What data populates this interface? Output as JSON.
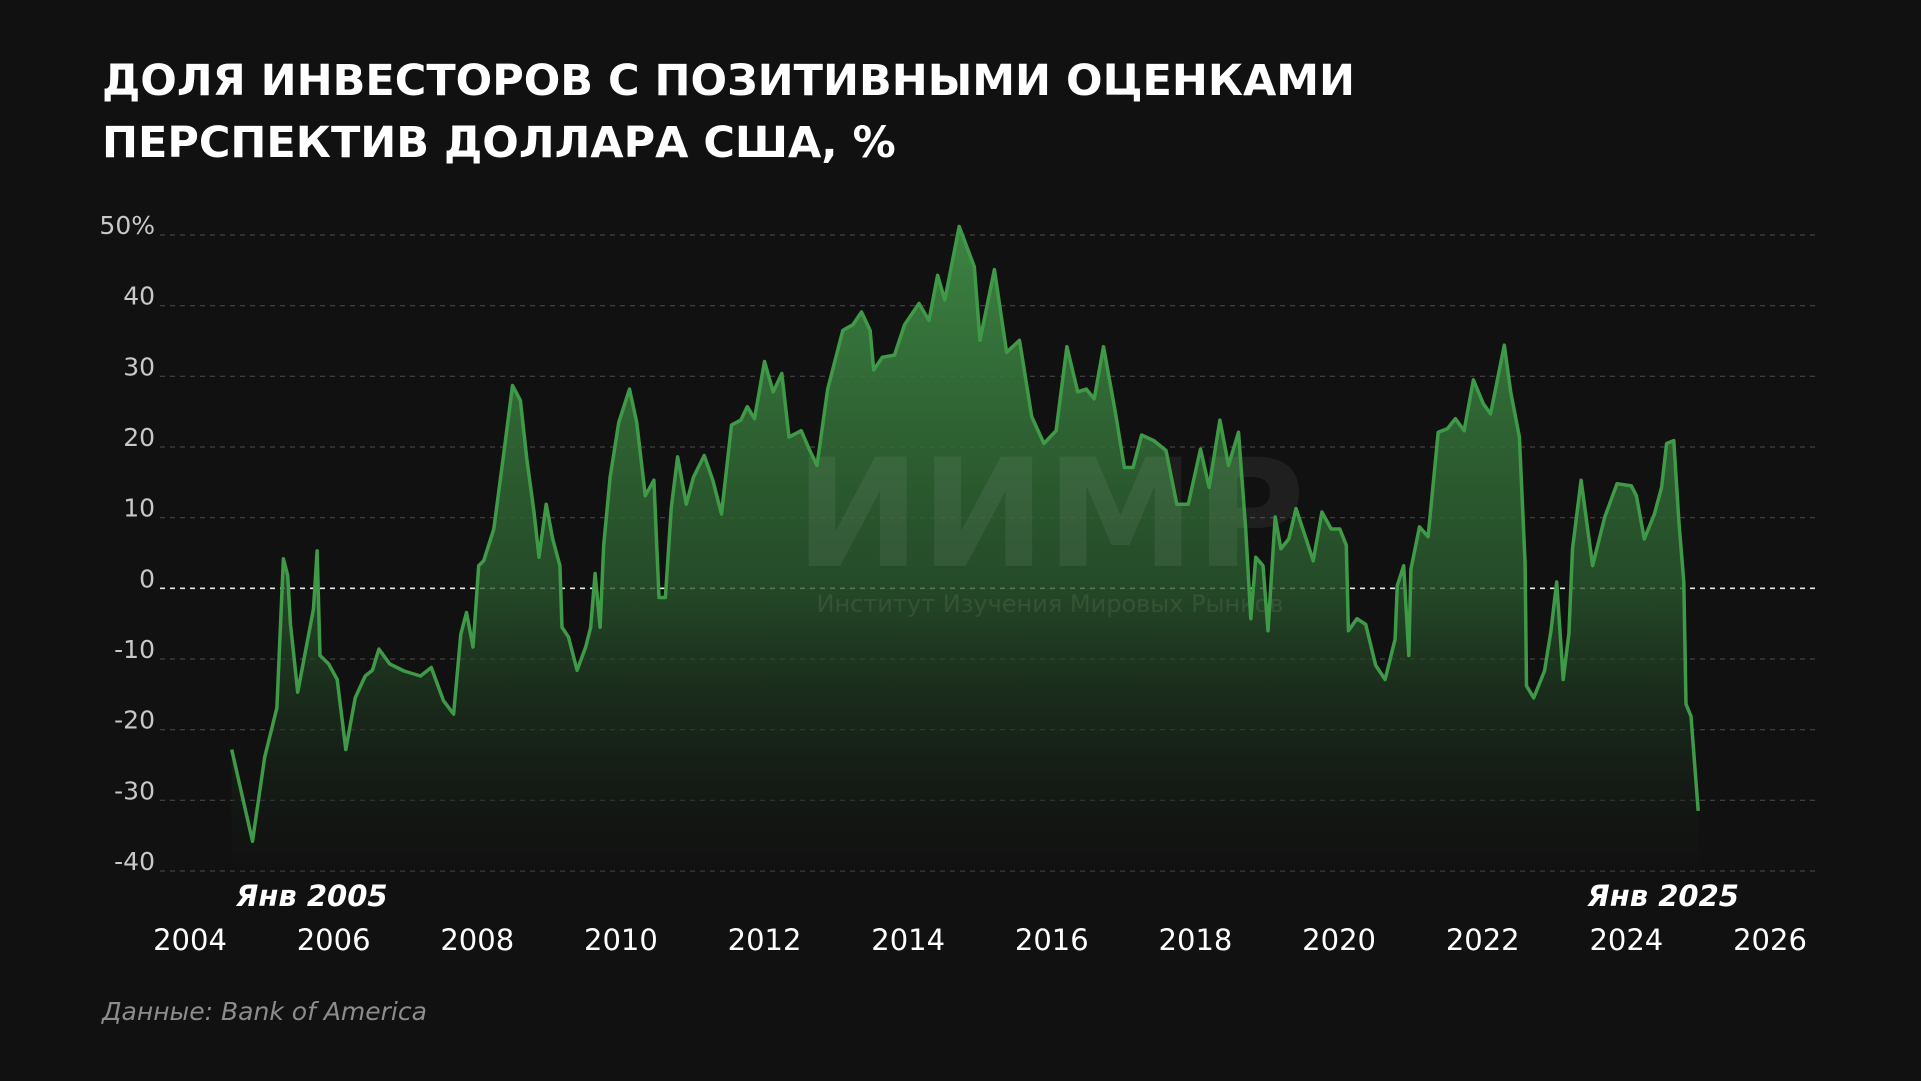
{
  "chart_data": {
    "type": "area",
    "title": [
      "ДОЛЯ ИНВЕСТОРОВ С ПОЗИТИВНЫМИ ОЦЕНКАМИ",
      "ПЕРСПЕКТИВ ДОЛЛАРА США, %"
    ],
    "source": "Данные: Bank of America",
    "annotations": [
      {
        "text": "Янв 2005",
        "x": 2005
      },
      {
        "text": "Янв 2025",
        "x": 2025
      }
    ],
    "watermark": {
      "title": "ИИМР",
      "subtitle": "Институт Изучения Мировых Рынков"
    },
    "xlim": [
      2004,
      2026
    ],
    "xticks": [
      2004,
      2006,
      2008,
      2010,
      2012,
      2014,
      2016,
      2018,
      2020,
      2022,
      2024,
      2026
    ],
    "ylim": [
      -40,
      50
    ],
    "yticks": [
      -40,
      -30,
      -20,
      -10,
      0,
      10,
      20,
      30,
      40,
      {
        "value": 50,
        "label": "50%"
      }
    ],
    "grid": true,
    "series": [
      {
        "color": "#3f9a47",
        "x": [
          2004.58,
          2004.87,
          2005.04,
          2005.21,
          2005.3,
          2005.36,
          2005.4,
          2005.5,
          2005.62,
          2005.72,
          2005.77,
          2005.81,
          2005.93,
          2006.05,
          2006.17,
          2006.3,
          2006.44,
          2006.54,
          2006.63,
          2006.78,
          2006.98,
          2007.21,
          2007.36,
          2007.53,
          2007.67,
          2007.77,
          2007.85,
          2007.94,
          2008.02,
          2008.09,
          2008.23,
          2008.37,
          2008.49,
          2008.6,
          2008.69,
          2008.79,
          2008.86,
          2008.96,
          2009.05,
          2009.15,
          2009.18,
          2009.27,
          2009.39,
          2009.51,
          2009.58,
          2009.64,
          2009.71,
          2009.76,
          2009.85,
          2009.97,
          2010.12,
          2010.22,
          2010.34,
          2010.46,
          2010.53,
          2010.62,
          2010.7,
          2010.79,
          2010.91,
          2011.01,
          2011.16,
          2011.28,
          2011.4,
          2011.54,
          2011.67,
          2011.76,
          2011.86,
          2012.0,
          2012.12,
          2012.24,
          2012.34,
          2012.51,
          2012.63,
          2012.73,
          2012.88,
          2013.09,
          2013.23,
          2013.35,
          2013.47,
          2013.52,
          2013.64,
          2013.81,
          2013.95,
          2014.15,
          2014.29,
          2014.41,
          2014.51,
          2014.71,
          2014.92,
          2015.0,
          2015.2,
          2015.37,
          2015.55,
          2015.72,
          2015.89,
          2016.06,
          2016.21,
          2016.36,
          2016.48,
          2016.59,
          2016.72,
          2016.88,
          2017.01,
          2017.13,
          2017.25,
          2017.42,
          2017.59,
          2017.74,
          2017.9,
          2018.07,
          2018.19,
          2018.34,
          2018.46,
          2018.6,
          2018.7,
          2018.77,
          2018.84,
          2018.94,
          2019.01,
          2019.11,
          2019.19,
          2019.3,
          2019.4,
          2019.54,
          2019.64,
          2019.76,
          2019.89,
          2020.01,
          2020.1,
          2020.13,
          2020.25,
          2020.37,
          2020.51,
          2020.64,
          2020.78,
          2020.81,
          2020.9,
          2020.97,
          2021.0,
          2021.12,
          2021.24,
          2021.38,
          2021.51,
          2021.62,
          2021.74,
          2021.87,
          2022.01,
          2022.11,
          2022.3,
          2022.39,
          2022.51,
          2022.59,
          2022.61,
          2022.71,
          2022.86,
          2022.95,
          2023.03,
          2023.12,
          2023.2,
          2023.25,
          2023.37,
          2023.53,
          2023.7,
          2023.87,
          2024.07,
          2024.14,
          2024.25,
          2024.39,
          2024.49,
          2024.56,
          2024.66,
          2024.73,
          2024.8,
          2024.83,
          2024.9,
          2025.0
        ],
        "values": [
          -22.8,
          -35.8,
          -23.9,
          -16.9,
          4.2,
          1.8,
          -5.1,
          -14.7,
          -8.3,
          -2.9,
          5.3,
          -9.5,
          -10.7,
          -12.9,
          -22.8,
          -15.5,
          -12.4,
          -11.6,
          -8.6,
          -10.7,
          -11.7,
          -12.4,
          -11.2,
          -15.9,
          -17.8,
          -6.5,
          -3.4,
          -8.3,
          3.2,
          3.9,
          8.4,
          19.1,
          28.7,
          26.6,
          18.3,
          10.8,
          4.4,
          11.9,
          7.0,
          3.2,
          -5.5,
          -6.9,
          -11.6,
          -8.3,
          -5.5,
          2.1,
          -5.5,
          6.1,
          15.7,
          23.5,
          28.2,
          23.5,
          13.1,
          15.3,
          -1.3,
          -1.3,
          11.3,
          18.6,
          11.9,
          15.7,
          18.8,
          15.3,
          10.5,
          23.1,
          23.8,
          25.7,
          24.0,
          32.1,
          27.8,
          30.4,
          21.4,
          22.3,
          19.5,
          17.4,
          28.2,
          36.5,
          37.3,
          39.1,
          36.5,
          30.9,
          32.7,
          33.0,
          37.3,
          40.3,
          37.9,
          44.3,
          40.8,
          51.2,
          45.5,
          35.1,
          45.1,
          33.4,
          35.1,
          24.3,
          20.5,
          22.3,
          34.2,
          27.8,
          28.2,
          26.8,
          34.2,
          25.2,
          17.1,
          17.1,
          21.7,
          20.9,
          19.5,
          11.9,
          11.9,
          19.7,
          14.3,
          23.8,
          17.4,
          22.1,
          8.4,
          -4.3,
          4.4,
          3.2,
          -6.0,
          10.1,
          5.6,
          7.0,
          11.3,
          7.0,
          3.9,
          10.8,
          8.4,
          8.4,
          6.1,
          -6.0,
          -4.3,
          -5.1,
          -10.9,
          -12.9,
          -7.2,
          0.4,
          3.2,
          -9.5,
          2.7,
          8.7,
          7.3,
          22.1,
          22.6,
          24.0,
          22.3,
          29.5,
          26.1,
          24.7,
          34.4,
          27.8,
          21.4,
          3.5,
          -13.8,
          -15.5,
          -11.7,
          -6.0,
          0.9,
          -12.9,
          -6.4,
          5.6,
          15.3,
          3.2,
          10.1,
          14.8,
          14.5,
          13.1,
          7.0,
          10.5,
          14.3,
          20.5,
          20.9,
          9.6,
          0.9,
          -16.4,
          -18.1,
          -31.5
        ]
      }
    ]
  }
}
